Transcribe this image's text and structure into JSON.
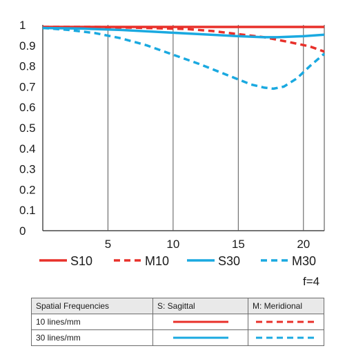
{
  "chart_data": {
    "type": "line",
    "xlim": [
      0,
      21.6
    ],
    "ylim": [
      0,
      1
    ],
    "x_ticks": [
      "5",
      "10",
      "15",
      "20"
    ],
    "x_tick_values": [
      5,
      10,
      15,
      20
    ],
    "y_ticks": [
      "0",
      "0.1",
      "0.2",
      "0.3",
      "0.4",
      "0.5",
      "0.6",
      "0.7",
      "0.8",
      "0.9",
      "1"
    ],
    "y_tick_values": [
      0,
      0.1,
      0.2,
      0.3,
      0.4,
      0.5,
      0.6,
      0.7,
      0.8,
      0.9,
      1.0
    ],
    "grid": "vertical",
    "legend_position": "bottom",
    "series": [
      {
        "name": "S10",
        "color": "#e8302a",
        "style": "solid",
        "x": [
          0,
          5,
          10,
          15,
          20,
          21.6
        ],
        "y": [
          0.99,
          0.99,
          0.99,
          0.99,
          0.99,
          0.99
        ]
      },
      {
        "name": "M10",
        "color": "#e8302a",
        "style": "dashed",
        "x": [
          0,
          4,
          8,
          11,
          13,
          15,
          17,
          19,
          20.5,
          21.6
        ],
        "y": [
          0.99,
          0.99,
          0.985,
          0.98,
          0.97,
          0.955,
          0.94,
          0.915,
          0.895,
          0.87
        ]
      },
      {
        "name": "S30",
        "color": "#1aa9e0",
        "style": "solid",
        "x": [
          0,
          3,
          6,
          9,
          12,
          15,
          17,
          18,
          20,
          21.6
        ],
        "y": [
          0.985,
          0.982,
          0.975,
          0.965,
          0.955,
          0.945,
          0.94,
          0.94,
          0.945,
          0.952
        ]
      },
      {
        "name": "M30",
        "color": "#1aa9e0",
        "style": "dashed",
        "x": [
          0,
          2,
          4,
          6,
          8,
          10,
          12,
          14,
          15,
          16,
          17,
          17.7,
          18.5,
          19.5,
          20.5,
          21.6
        ],
        "y": [
          0.985,
          0.975,
          0.96,
          0.935,
          0.9,
          0.855,
          0.81,
          0.76,
          0.735,
          0.71,
          0.695,
          0.69,
          0.7,
          0.74,
          0.8,
          0.86
        ]
      }
    ]
  },
  "legend": {
    "items": [
      "S10",
      "M10",
      "S30",
      "M30"
    ]
  },
  "aperture_label": "f=4",
  "table": {
    "headers": [
      "Spatial Frequencies",
      "S: Sagittal",
      "M: Meridional"
    ],
    "rows": [
      {
        "label": "10 lines/mm",
        "sagittal_color": "#e8302a",
        "meridional_color": "#e8302a"
      },
      {
        "label": "30 lines/mm",
        "sagittal_color": "#1aa9e0",
        "meridional_color": "#1aa9e0"
      }
    ]
  }
}
